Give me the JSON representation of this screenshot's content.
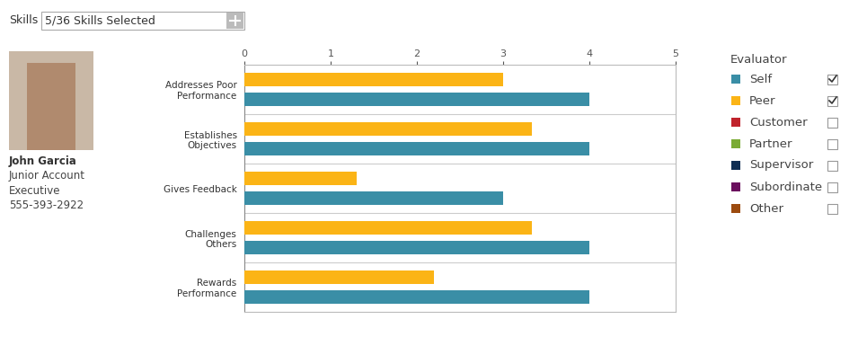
{
  "chart_data": {
    "type": "bar",
    "orientation": "horizontal",
    "categories": [
      "Addresses Poor Performance",
      "Establishes Objectives",
      "Gives Feedback",
      "Challenges Others",
      "Rewards Performance"
    ],
    "series": [
      {
        "name": "Self",
        "color": "#3a8ea6",
        "values": [
          4,
          4,
          3,
          4,
          4
        ]
      },
      {
        "name": "Peer",
        "color": "#fbb416",
        "values": [
          3,
          3.33,
          1.3,
          3.33,
          2.2
        ]
      }
    ],
    "xlim": [
      0,
      5
    ],
    "xticks": [
      0,
      1,
      2,
      3,
      4,
      5
    ]
  },
  "skills_filter": {
    "label": "Skills",
    "value": "5/36 Skills Selected"
  },
  "profile": {
    "name": "John Garcia",
    "title": "Junior Account Executive",
    "phone": "555-393-2922"
  },
  "evaluator_panel": {
    "title": "Evaluator",
    "items": [
      {
        "name": "Self",
        "color": "#3a8ea6",
        "checked": true
      },
      {
        "name": "Peer",
        "color": "#fbb416",
        "checked": true
      },
      {
        "name": "Customer",
        "color": "#c0232c",
        "checked": false
      },
      {
        "name": "Partner",
        "color": "#7aab34",
        "checked": false
      },
      {
        "name": "Supervisor",
        "color": "#0f2d52",
        "checked": false
      },
      {
        "name": "Subordinate",
        "color": "#6b0f5e",
        "checked": false
      },
      {
        "name": "Other",
        "color": "#9c4b0f",
        "checked": false
      }
    ]
  }
}
